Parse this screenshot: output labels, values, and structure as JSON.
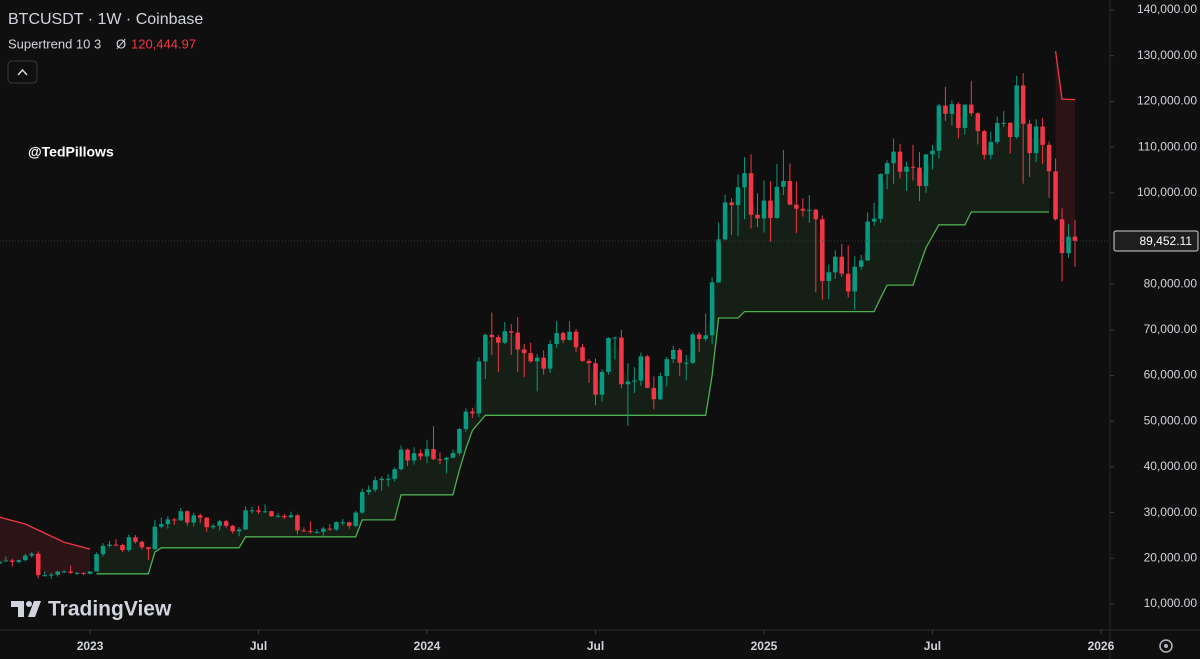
{
  "header": {
    "symbol": "BTCUSDT · 1W · Coinbase",
    "indicator": "Supertrend 10 3",
    "indicator_symbol": "Ø",
    "indicator_value": "120,444.97"
  },
  "watermark": "@TedPillows",
  "brand": "TradingView",
  "chart_data": {
    "type": "candlestick",
    "up_color": "#089981",
    "down_color": "#f23645",
    "candles": [
      [
        18800,
        20200,
        18200,
        19300
      ],
      [
        19300,
        20400,
        19300,
        19500
      ],
      [
        19500,
        19900,
        18200,
        19200
      ],
      [
        19200,
        19700,
        18900,
        19600
      ],
      [
        19600,
        21000,
        19300,
        20600
      ],
      [
        20600,
        21400,
        20100,
        21000
      ],
      [
        21000,
        21500,
        15600,
        16300
      ],
      [
        16300,
        17100,
        16000,
        16300
      ],
      [
        16300,
        16800,
        15500,
        16400
      ],
      [
        16400,
        17300,
        16000,
        17100
      ],
      [
        17100,
        17400,
        16800,
        17100
      ],
      [
        17100,
        18400,
        16600,
        16800
      ],
      [
        16800,
        17000,
        16400,
        16800
      ],
      [
        16800,
        16900,
        16300,
        16600
      ],
      [
        16600,
        17200,
        16500,
        17100
      ],
      [
        17100,
        21300,
        17100,
        20900
      ],
      [
        20900,
        23300,
        20400,
        22700
      ],
      [
        22700,
        23800,
        22300,
        23000
      ],
      [
        23000,
        24200,
        22700,
        22900
      ],
      [
        22900,
        23200,
        21400,
        21800
      ],
      [
        21800,
        25200,
        21400,
        24600
      ],
      [
        24600,
        25100,
        23200,
        23600
      ],
      [
        23600,
        23900,
        21900,
        22400
      ],
      [
        22400,
        22600,
        19600,
        22000
      ],
      [
        22000,
        28400,
        21900,
        26900
      ],
      [
        26900,
        28900,
        26600,
        27500
      ],
      [
        27500,
        29200,
        26500,
        28500
      ],
      [
        28500,
        28800,
        27300,
        28300
      ],
      [
        28300,
        31000,
        28200,
        30300
      ],
      [
        30300,
        30500,
        27100,
        27800
      ],
      [
        27800,
        30000,
        27000,
        29400
      ],
      [
        29400,
        29800,
        27700,
        28900
      ],
      [
        28900,
        29000,
        25800,
        26800
      ],
      [
        26800,
        27600,
        26400,
        27100
      ],
      [
        27100,
        28400,
        26100,
        28100
      ],
      [
        28100,
        28400,
        26600,
        27100
      ],
      [
        27100,
        27300,
        25400,
        25900
      ],
      [
        25900,
        26800,
        24800,
        26300
      ],
      [
        26300,
        31400,
        26200,
        30500
      ],
      [
        30500,
        31300,
        29800,
        30500
      ],
      [
        30500,
        31500,
        29700,
        30200
      ],
      [
        30200,
        31800,
        29900,
        30300
      ],
      [
        30300,
        30400,
        29100,
        29200
      ],
      [
        29200,
        29900,
        28900,
        29300
      ],
      [
        29300,
        29700,
        28600,
        29000
      ],
      [
        29000,
        30200,
        28800,
        29400
      ],
      [
        29400,
        29700,
        25200,
        26100
      ],
      [
        26100,
        26800,
        25800,
        26000
      ],
      [
        26000,
        28100,
        25400,
        25800
      ],
      [
        25800,
        26400,
        25400,
        25800
      ],
      [
        25800,
        26900,
        24900,
        26500
      ],
      [
        26500,
        27500,
        26000,
        26300
      ],
      [
        26300,
        28100,
        26000,
        27900
      ],
      [
        27900,
        28600,
        27200,
        27900
      ],
      [
        27900,
        28000,
        26500,
        27100
      ],
      [
        27100,
        30400,
        26800,
        30000
      ],
      [
        30000,
        35200,
        29800,
        34500
      ],
      [
        34500,
        35900,
        33900,
        35000
      ],
      [
        35000,
        37900,
        34500,
        37100
      ],
      [
        37100,
        37900,
        34800,
        37400
      ],
      [
        37400,
        38400,
        35700,
        37400
      ],
      [
        37400,
        39900,
        36800,
        39500
      ],
      [
        39500,
        44700,
        39200,
        43800
      ],
      [
        43800,
        44000,
        40200,
        41400
      ],
      [
        41400,
        44300,
        40500,
        43000
      ],
      [
        43000,
        43800,
        41500,
        42300
      ],
      [
        42300,
        45900,
        40800,
        43900
      ],
      [
        43900,
        48900,
        41500,
        41700
      ],
      [
        41700,
        43200,
        40600,
        41600
      ],
      [
        41600,
        42200,
        38600,
        42000
      ],
      [
        42000,
        43800,
        41900,
        43000
      ],
      [
        43000,
        48500,
        42500,
        48300
      ],
      [
        48300,
        52800,
        47700,
        52100
      ],
      [
        52100,
        52900,
        50700,
        51700
      ],
      [
        51700,
        64000,
        50900,
        63100
      ],
      [
        63100,
        69200,
        59200,
        68900
      ],
      [
        68900,
        73800,
        64500,
        68400
      ],
      [
        68400,
        68900,
        60800,
        67200
      ],
      [
        67200,
        71700,
        66900,
        69700
      ],
      [
        69700,
        71300,
        64500,
        69400
      ],
      [
        69400,
        72800,
        60700,
        65700
      ],
      [
        65700,
        66900,
        59700,
        64900
      ],
      [
        64900,
        67200,
        62800,
        63100
      ],
      [
        63100,
        64700,
        56500,
        63900
      ],
      [
        63900,
        65500,
        60200,
        61500
      ],
      [
        61500,
        67700,
        60600,
        66900
      ],
      [
        66900,
        71900,
        66100,
        69300
      ],
      [
        69300,
        69600,
        67100,
        67800
      ],
      [
        67800,
        71900,
        67600,
        69600
      ],
      [
        69600,
        70200,
        65100,
        66200
      ],
      [
        66200,
        66900,
        63000,
        63200
      ],
      [
        63200,
        63600,
        58400,
        62700
      ],
      [
        62700,
        63700,
        53500,
        55800
      ],
      [
        55800,
        61400,
        54300,
        60800
      ],
      [
        60800,
        68400,
        60200,
        68200
      ],
      [
        68200,
        68500,
        63500,
        68300
      ],
      [
        68300,
        70000,
        57200,
        58100
      ],
      [
        58100,
        62700,
        49000,
        58700
      ],
      [
        58700,
        61800,
        56200,
        58900
      ],
      [
        58900,
        65000,
        57800,
        64200
      ],
      [
        64200,
        64500,
        57200,
        57300
      ],
      [
        57300,
        59800,
        52600,
        54800
      ],
      [
        54800,
        60600,
        54600,
        59900
      ],
      [
        59900,
        64100,
        57600,
        63600
      ],
      [
        63600,
        66500,
        62700,
        65600
      ],
      [
        65600,
        66000,
        59900,
        62800
      ],
      [
        62800,
        64500,
        58900,
        62800
      ],
      [
        62800,
        69400,
        62500,
        69000
      ],
      [
        69000,
        69500,
        65100,
        68000
      ],
      [
        68000,
        73600,
        67500,
        68800
      ],
      [
        68800,
        81500,
        66800,
        80400
      ],
      [
        80400,
        93500,
        80200,
        89800
      ],
      [
        89800,
        99600,
        89600,
        97900
      ],
      [
        97900,
        98800,
        90800,
        97300
      ],
      [
        97300,
        104000,
        90500,
        101200
      ],
      [
        101200,
        107800,
        94200,
        104300
      ],
      [
        104300,
        108400,
        92200,
        95200
      ],
      [
        95200,
        99900,
        92500,
        94400
      ],
      [
        94400,
        102700,
        91300,
        98300
      ],
      [
        98300,
        102500,
        89300,
        94500
      ],
      [
        94500,
        106300,
        94300,
        101300
      ],
      [
        101300,
        109400,
        99500,
        102600
      ],
      [
        102600,
        106400,
        97300,
        97400
      ],
      [
        97400,
        102500,
        91200,
        96500
      ],
      [
        96500,
        98800,
        94800,
        96100
      ],
      [
        96100,
        99500,
        93400,
        96300
      ],
      [
        96300,
        96500,
        78200,
        94200
      ],
      [
        94200,
        95000,
        76600,
        80700
      ],
      [
        80700,
        84300,
        76700,
        82600
      ],
      [
        82600,
        87400,
        81200,
        86000
      ],
      [
        86000,
        88800,
        81600,
        82300
      ],
      [
        82300,
        88500,
        77100,
        78400
      ],
      [
        78400,
        86100,
        74400,
        83800
      ],
      [
        83800,
        86400,
        83100,
        85200
      ],
      [
        85200,
        95700,
        85100,
        93700
      ],
      [
        93700,
        97800,
        92800,
        94300
      ],
      [
        94300,
        104300,
        93400,
        104100
      ],
      [
        104100,
        107100,
        100800,
        106500
      ],
      [
        106500,
        111900,
        102000,
        109000
      ],
      [
        109000,
        110700,
        103100,
        104600
      ],
      [
        104600,
        106800,
        100400,
        105700
      ],
      [
        105700,
        110500,
        102700,
        105500
      ],
      [
        105500,
        108900,
        98200,
        101500
      ],
      [
        101500,
        108500,
        100000,
        108400
      ],
      [
        108400,
        110500,
        105100,
        109200
      ],
      [
        109200,
        119500,
        107500,
        119100
      ],
      [
        119100,
        123200,
        115700,
        117300
      ],
      [
        117300,
        120200,
        114700,
        119400
      ],
      [
        119400,
        119800,
        111900,
        114200
      ],
      [
        114200,
        119300,
        112700,
        119300
      ],
      [
        119300,
        124500,
        116800,
        117400
      ],
      [
        117400,
        117600,
        110600,
        113500
      ],
      [
        113500,
        113800,
        107300,
        108300
      ],
      [
        108300,
        113400,
        107300,
        111100
      ],
      [
        111100,
        116700,
        110600,
        115300
      ],
      [
        115300,
        117900,
        114400,
        115300
      ],
      [
        115300,
        115500,
        108600,
        112200
      ],
      [
        112200,
        125600,
        111800,
        123500
      ],
      [
        123500,
        126200,
        102000,
        115100
      ],
      [
        115100,
        116000,
        103500,
        108700
      ],
      [
        108700,
        116100,
        106700,
        114500
      ],
      [
        114500,
        116400,
        106300,
        110500
      ],
      [
        110500,
        111200,
        98900,
        104700
      ],
      [
        104700,
        107500,
        93900,
        94200
      ],
      [
        94200,
        96600,
        80600,
        86800
      ],
      [
        86800,
        93100,
        85800,
        90400
      ],
      [
        90400,
        94100,
        83800,
        89452.11
      ]
    ],
    "supertrend": [
      {
        "color": "#f23645",
        "fill": "rgba(242,54,69,0.13)",
        "x": [
          0,
          4,
          7,
          10,
          14
        ],
        "values": [
          29000,
          27500,
          25500,
          23500,
          22000
        ]
      },
      {
        "color": "#4caf50",
        "fill": "rgba(76,175,80,0.10)",
        "x": [
          15,
          23,
          24,
          25,
          37,
          38,
          55,
          56,
          61,
          62,
          70,
          71,
          72,
          73,
          75,
          109,
          110,
          111,
          114,
          115,
          135,
          136,
          137,
          141,
          142,
          143,
          145,
          149,
          150,
          162
        ],
        "values": [
          16600,
          16600,
          21400,
          22300,
          22300,
          24700,
          24700,
          28400,
          28400,
          33900,
          33900,
          39300,
          44000,
          48000,
          51300,
          51300,
          60000,
          72600,
          72600,
          74000,
          74000,
          77000,
          79800,
          79800,
          84000,
          88000,
          93000,
          93000,
          95800,
          95800
        ]
      },
      {
        "color": "#f23645",
        "fill": "rgba(242,54,69,0.13)",
        "x": [
          163,
          164,
          166
        ],
        "values": [
          131000,
          120500,
          120400
        ]
      }
    ],
    "last_price_label": "89,452.11",
    "xlim": [
      0.1,
      171.4
    ],
    "ylim": [
      4300,
      142200
    ],
    "xticks": [
      {
        "value": 14,
        "label": "2023"
      },
      {
        "value": 40,
        "label": "Jul"
      },
      {
        "value": 66,
        "label": "2024"
      },
      {
        "value": 92,
        "label": "Jul"
      },
      {
        "value": 118,
        "label": "2025"
      },
      {
        "value": 144,
        "label": "Jul"
      },
      {
        "value": 170,
        "label": "2026"
      }
    ],
    "yticks": [
      {
        "value": 10000,
        "label": "10,000.00"
      },
      {
        "value": 20000,
        "label": "20,000.00"
      },
      {
        "value": 30000,
        "label": "30,000.00"
      },
      {
        "value": 40000,
        "label": "40,000.00"
      },
      {
        "value": 50000,
        "label": "50,000.00"
      },
      {
        "value": 60000,
        "label": "60,000.00"
      },
      {
        "value": 70000,
        "label": "70,000.00"
      },
      {
        "value": 80000,
        "label": "80,000.00"
      },
      {
        "value": 100000,
        "label": "100,000.00"
      },
      {
        "value": 110000,
        "label": "110,000.00"
      },
      {
        "value": 120000,
        "label": "120,000.00"
      },
      {
        "value": 130000,
        "label": "130,000.00"
      },
      {
        "value": 140000,
        "label": "140,000.00"
      }
    ]
  }
}
